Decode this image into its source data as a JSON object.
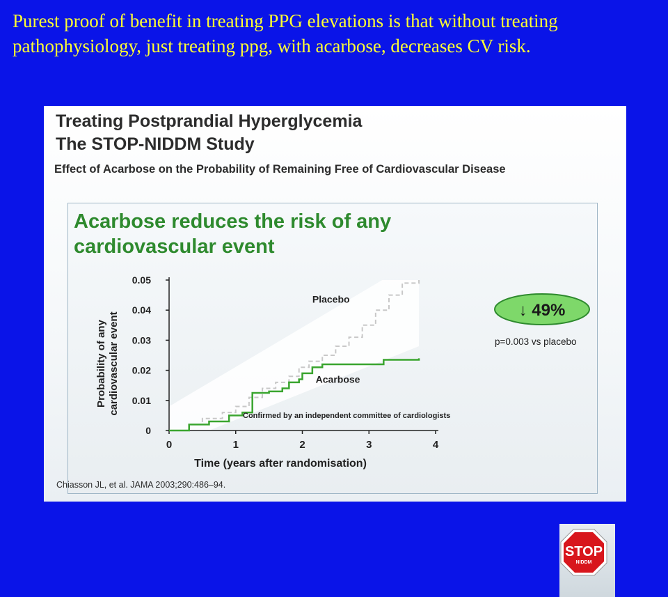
{
  "slide": {
    "heading_line1": "Purest proof of benefit in treating PPG elevations is that without treating",
    "heading_line2": "pathophysiology, just  treating ppg, with acarbose, decreases CV risk."
  },
  "figure": {
    "title_line1": "Treating Postprandial Hyperglycemia",
    "title_line2": "The STOP-NIDDM Study",
    "subtitle": "Effect of Acarbose on the Probability of Remaining Free of Cardiovascular Disease",
    "citation": "Chiasson JL, et al. JAMA 2003;290:486–94.",
    "logo_text": "STOP",
    "logo_subtext": "NIDDM"
  },
  "chart_data": {
    "type": "line",
    "title_line1": "Acarbose reduces the risk of any",
    "title_line2": "cardiovascular event",
    "xlabel": "Time (years after randomisation)",
    "ylabel_line1": "Probability of any",
    "ylabel_line2": "cardiovascular event",
    "xlim": [
      0,
      4
    ],
    "ylim": [
      0,
      0.05
    ],
    "x_ticks": [
      "0",
      "1",
      "2",
      "3",
      "4"
    ],
    "y_ticks": [
      "0",
      "0.01",
      "0.02",
      "0.03",
      "0.04",
      "0.05"
    ],
    "series": [
      {
        "name": "Placebo",
        "color": "#c8c8c8",
        "style": "dashed",
        "points": [
          [
            0,
            0
          ],
          [
            0.3,
            0.002
          ],
          [
            0.5,
            0.004
          ],
          [
            0.8,
            0.006
          ],
          [
            1.0,
            0.008
          ],
          [
            1.2,
            0.011
          ],
          [
            1.4,
            0.014
          ],
          [
            1.6,
            0.016
          ],
          [
            1.8,
            0.018
          ],
          [
            1.95,
            0.021
          ],
          [
            2.1,
            0.023
          ],
          [
            2.3,
            0.025
          ],
          [
            2.5,
            0.028
          ],
          [
            2.7,
            0.031
          ],
          [
            2.9,
            0.035
          ],
          [
            3.1,
            0.04
          ],
          [
            3.3,
            0.045
          ],
          [
            3.5,
            0.049
          ],
          [
            3.75,
            0.05
          ]
        ]
      },
      {
        "name": "Acarbose",
        "color": "#3aa52f",
        "style": "solid",
        "points": [
          [
            0,
            0
          ],
          [
            0.3,
            0.002
          ],
          [
            0.6,
            0.003
          ],
          [
            0.9,
            0.005
          ],
          [
            1.1,
            0.006
          ],
          [
            1.25,
            0.0125
          ],
          [
            1.5,
            0.013
          ],
          [
            1.7,
            0.014
          ],
          [
            1.8,
            0.016
          ],
          [
            1.95,
            0.017
          ],
          [
            2.0,
            0.019
          ],
          [
            2.15,
            0.021
          ],
          [
            2.3,
            0.022
          ],
          [
            2.6,
            0.022
          ],
          [
            3.0,
            0.022
          ],
          [
            3.2,
            0.022
          ],
          [
            3.22,
            0.0235
          ],
          [
            3.75,
            0.024
          ]
        ]
      }
    ],
    "annotations": {
      "reduction": "↓ 49%",
      "pvalue": "p=0.003 vs placebo",
      "note": "Confirmed by an independent committee of cardiologists"
    },
    "grid": false
  }
}
